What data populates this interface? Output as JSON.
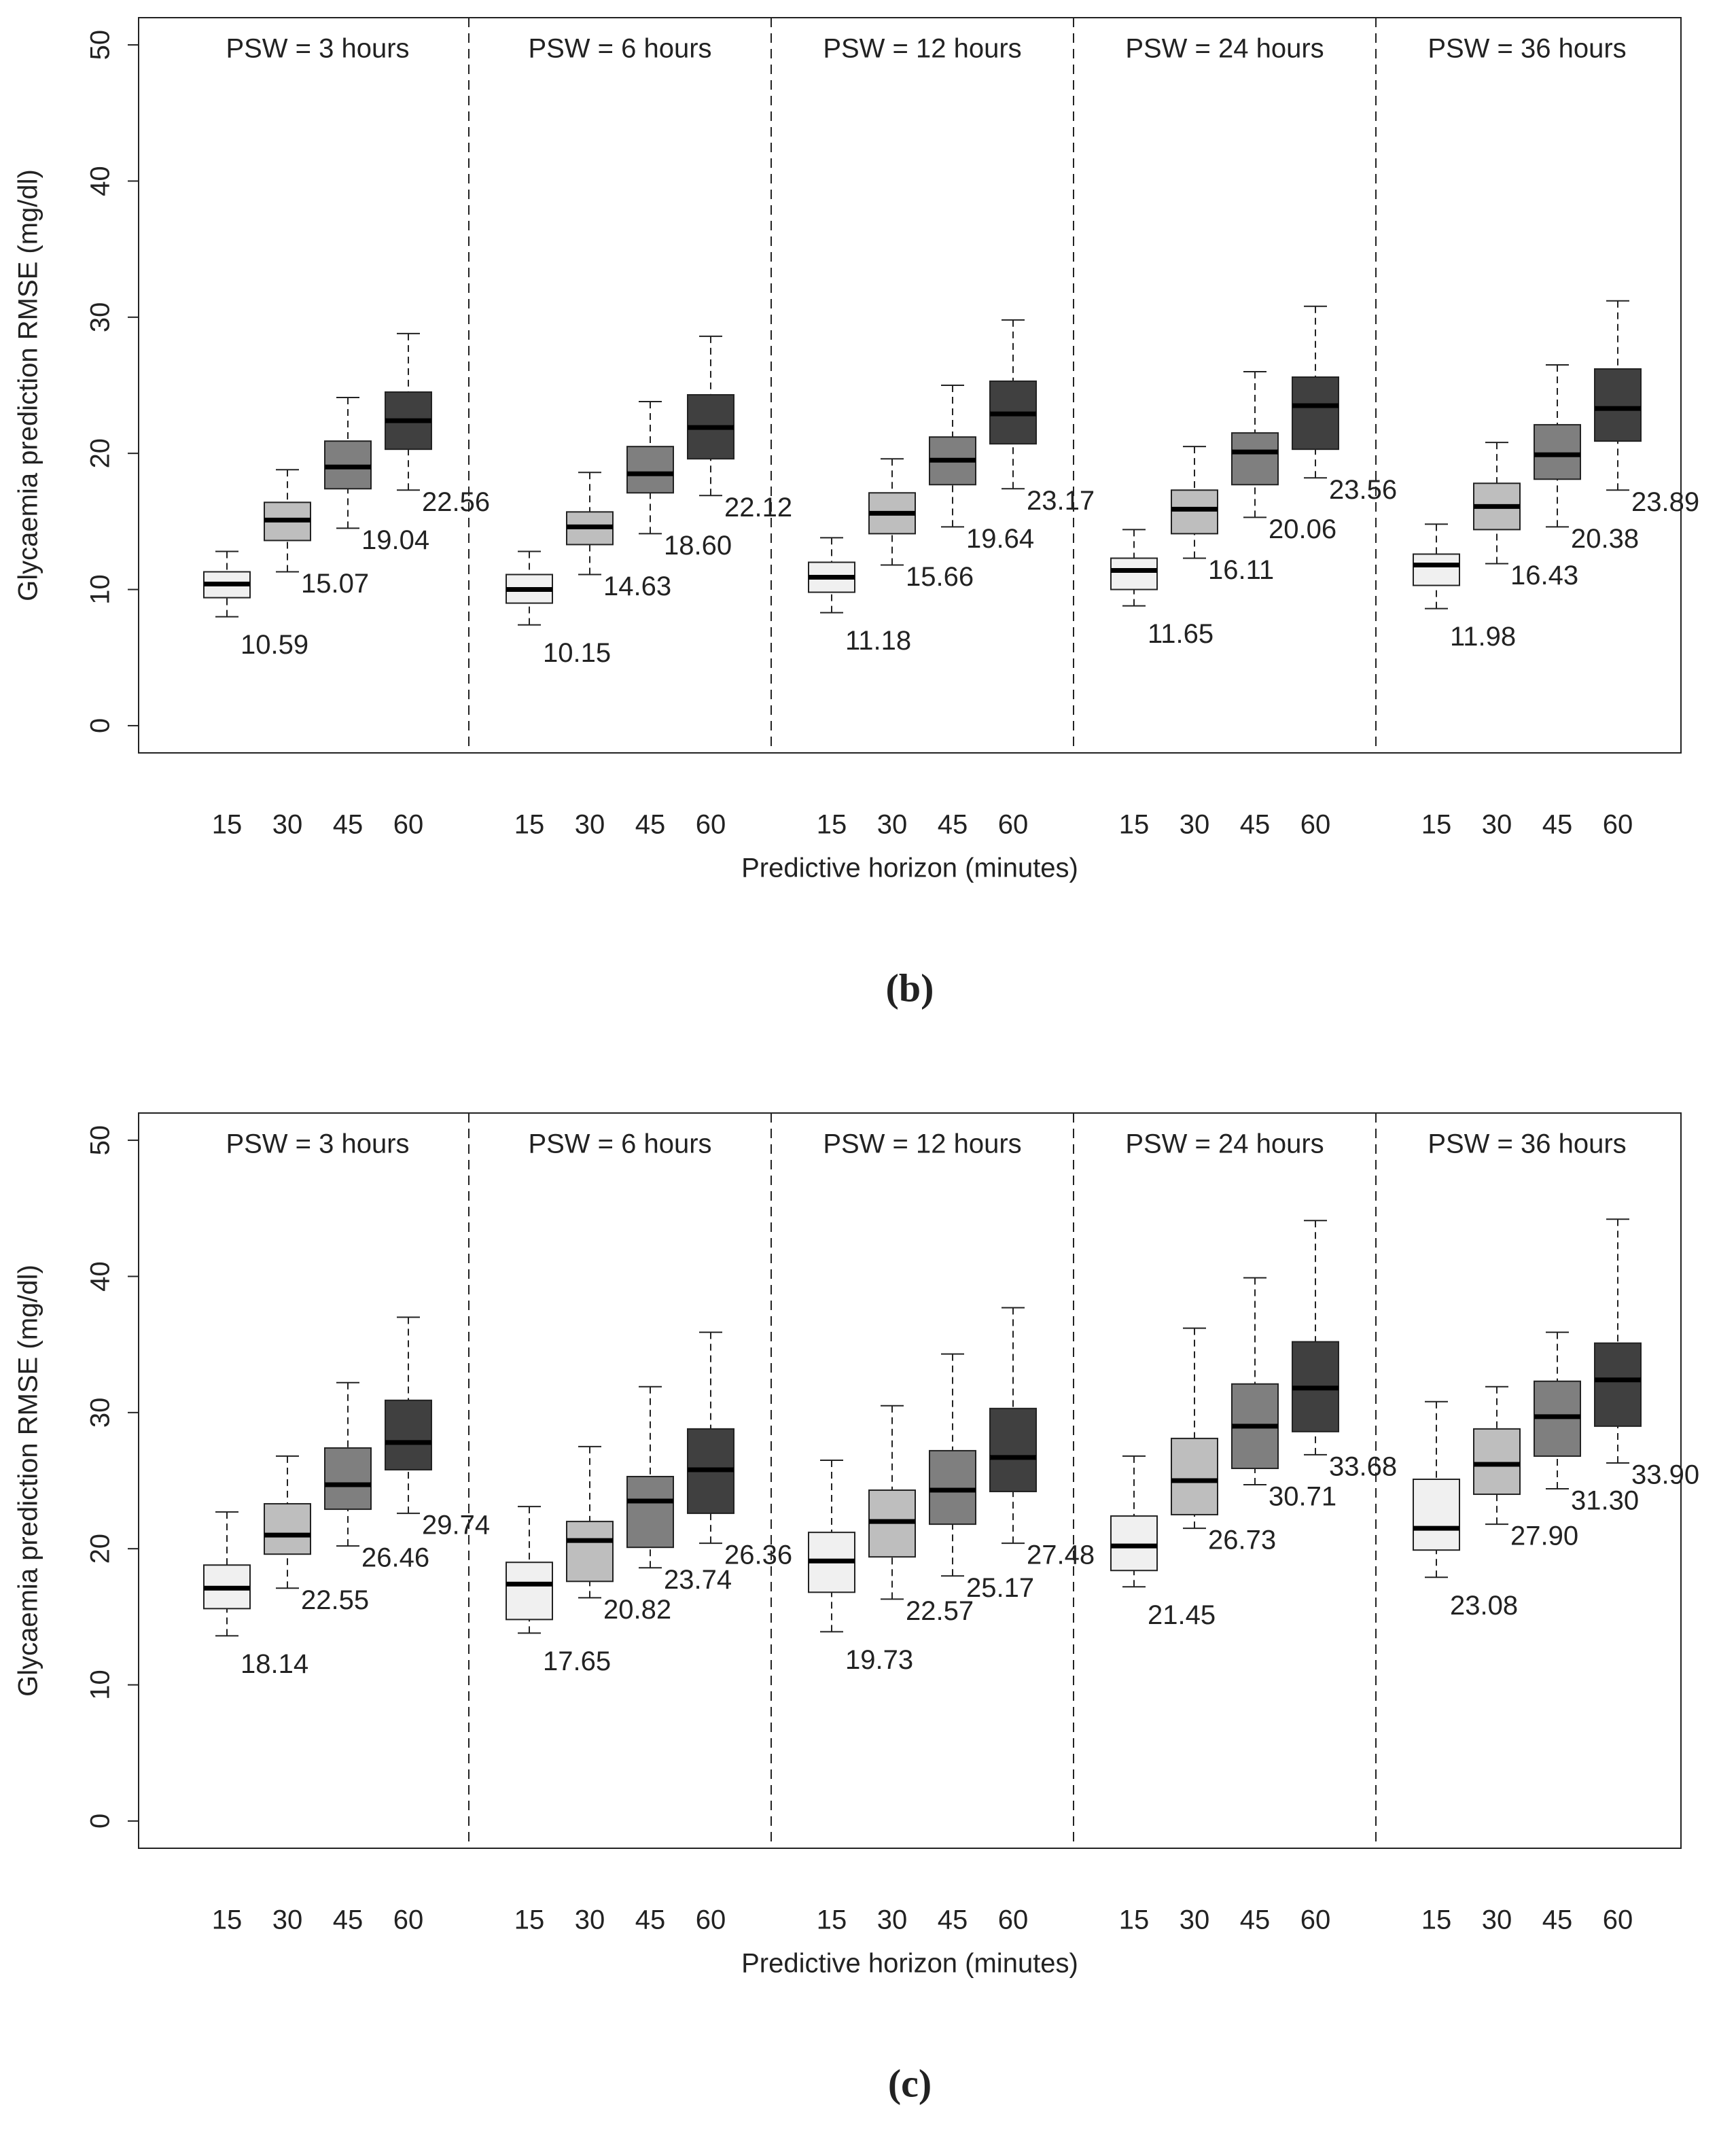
{
  "chart_data": [
    {
      "type": "box",
      "caption": "(b)",
      "y_label": "Glycaemia prediction RMSE (mg/dl)",
      "x_label": "Predictive horizon (minutes)",
      "categories": [
        "15",
        "30",
        "45",
        "60"
      ],
      "colors": [
        "#f0f0f0",
        "#bebebe",
        "#7f7f7f",
        "#404040"
      ],
      "ylim": [
        -2,
        52
      ],
      "yticks": [
        0,
        10,
        20,
        30,
        40,
        50
      ],
      "groups": [
        {
          "name": "PSW = 3 hours",
          "boxes": [
            {
              "whislo": 8.0,
              "q1": 9.4,
              "med": 10.4,
              "q3": 11.3,
              "whishi": 12.8
            },
            {
              "whislo": 11.3,
              "q1": 13.6,
              "med": 15.1,
              "q3": 16.4,
              "whishi": 18.8
            },
            {
              "whislo": 14.5,
              "q1": 17.4,
              "med": 19.0,
              "q3": 20.9,
              "whishi": 24.1
            },
            {
              "whislo": 17.3,
              "q1": 20.3,
              "med": 22.4,
              "q3": 24.5,
              "whishi": 28.8
            }
          ],
          "values": [
            10.59,
            15.07,
            19.04,
            22.56
          ],
          "value_labels": [
            "10.59",
            "15.07",
            "19.04",
            "22.56"
          ]
        },
        {
          "name": "PSW = 6 hours",
          "boxes": [
            {
              "whislo": 7.4,
              "q1": 9.0,
              "med": 10.0,
              "q3": 11.1,
              "whishi": 12.8
            },
            {
              "whislo": 11.1,
              "q1": 13.3,
              "med": 14.6,
              "q3": 15.7,
              "whishi": 18.6
            },
            {
              "whislo": 14.1,
              "q1": 17.1,
              "med": 18.5,
              "q3": 20.5,
              "whishi": 23.8
            },
            {
              "whislo": 16.9,
              "q1": 19.6,
              "med": 21.9,
              "q3": 24.3,
              "whishi": 28.6
            }
          ],
          "values": [
            10.15,
            14.63,
            18.6,
            22.12
          ],
          "value_labels": [
            "10.15",
            "14.63",
            "18.60",
            "22.12"
          ]
        },
        {
          "name": "PSW = 12 hours",
          "boxes": [
            {
              "whislo": 8.3,
              "q1": 9.8,
              "med": 10.9,
              "q3": 12.0,
              "whishi": 13.8
            },
            {
              "whislo": 11.8,
              "q1": 14.1,
              "med": 15.6,
              "q3": 17.1,
              "whishi": 19.6
            },
            {
              "whislo": 14.6,
              "q1": 17.7,
              "med": 19.5,
              "q3": 21.2,
              "whishi": 25.0
            },
            {
              "whislo": 17.4,
              "q1": 20.7,
              "med": 22.9,
              "q3": 25.3,
              "whishi": 29.8
            }
          ],
          "values": [
            11.18,
            15.66,
            19.64,
            23.17
          ],
          "value_labels": [
            "11.18",
            "15.66",
            "19.64",
            "23.17"
          ]
        },
        {
          "name": "PSW = 24 hours",
          "boxes": [
            {
              "whislo": 8.8,
              "q1": 10.0,
              "med": 11.4,
              "q3": 12.3,
              "whishi": 14.4
            },
            {
              "whislo": 12.3,
              "q1": 14.1,
              "med": 15.9,
              "q3": 17.3,
              "whishi": 20.5
            },
            {
              "whislo": 15.3,
              "q1": 17.7,
              "med": 20.1,
              "q3": 21.5,
              "whishi": 26.0
            },
            {
              "whislo": 18.2,
              "q1": 20.3,
              "med": 23.5,
              "q3": 25.6,
              "whishi": 30.8
            }
          ],
          "values": [
            11.65,
            16.11,
            20.06,
            23.56
          ],
          "value_labels": [
            "11.65",
            "16.11",
            "20.06",
            "23.56"
          ]
        },
        {
          "name": "PSW = 36 hours",
          "boxes": [
            {
              "whislo": 8.6,
              "q1": 10.3,
              "med": 11.8,
              "q3": 12.6,
              "whishi": 14.8
            },
            {
              "whislo": 11.9,
              "q1": 14.4,
              "med": 16.1,
              "q3": 17.8,
              "whishi": 20.8
            },
            {
              "whislo": 14.6,
              "q1": 18.1,
              "med": 19.9,
              "q3": 22.1,
              "whishi": 26.5
            },
            {
              "whislo": 17.3,
              "q1": 20.9,
              "med": 23.3,
              "q3": 26.2,
              "whishi": 31.2
            }
          ],
          "values": [
            11.98,
            16.43,
            20.38,
            23.89
          ],
          "value_labels": [
            "11.98",
            "16.43",
            "20.38",
            "23.89"
          ]
        }
      ]
    },
    {
      "type": "box",
      "caption": "(c)",
      "y_label": "Glycaemia prediction RMSE (mg/dl)",
      "x_label": "Predictive horizon (minutes)",
      "categories": [
        "15",
        "30",
        "45",
        "60"
      ],
      "colors": [
        "#f0f0f0",
        "#bebebe",
        "#7f7f7f",
        "#404040"
      ],
      "ylim": [
        -2,
        52
      ],
      "yticks": [
        0,
        10,
        20,
        30,
        40,
        50
      ],
      "groups": [
        {
          "name": "PSW = 3 hours",
          "boxes": [
            {
              "whislo": 13.6,
              "q1": 15.6,
              "med": 17.1,
              "q3": 18.8,
              "whishi": 22.7
            },
            {
              "whislo": 17.1,
              "q1": 19.6,
              "med": 21.0,
              "q3": 23.3,
              "whishi": 26.8
            },
            {
              "whislo": 20.2,
              "q1": 22.9,
              "med": 24.7,
              "q3": 27.4,
              "whishi": 32.2
            },
            {
              "whislo": 22.6,
              "q1": 25.8,
              "med": 27.8,
              "q3": 30.9,
              "whishi": 37.0
            }
          ],
          "values": [
            18.14,
            22.55,
            26.46,
            29.74
          ],
          "value_labels": [
            "18.14",
            "22.55",
            "26.46",
            "29.74"
          ]
        },
        {
          "name": "PSW = 6 hours",
          "boxes": [
            {
              "whislo": 13.8,
              "q1": 14.8,
              "med": 17.4,
              "q3": 19.0,
              "whishi": 23.1
            },
            {
              "whislo": 16.4,
              "q1": 17.6,
              "med": 20.6,
              "q3": 22.0,
              "whishi": 27.5
            },
            {
              "whislo": 18.6,
              "q1": 20.1,
              "med": 23.5,
              "q3": 25.3,
              "whishi": 31.9
            },
            {
              "whislo": 20.4,
              "q1": 22.6,
              "med": 25.8,
              "q3": 28.8,
              "whishi": 35.9
            }
          ],
          "values": [
            17.65,
            20.82,
            23.74,
            26.36
          ],
          "value_labels": [
            "17.65",
            "20.82",
            "23.74",
            "26.36"
          ]
        },
        {
          "name": "PSW = 12 hours",
          "boxes": [
            {
              "whislo": 13.9,
              "q1": 16.8,
              "med": 19.1,
              "q3": 21.2,
              "whishi": 26.5
            },
            {
              "whislo": 16.3,
              "q1": 19.4,
              "med": 22.0,
              "q3": 24.3,
              "whishi": 30.5
            },
            {
              "whislo": 18.0,
              "q1": 21.8,
              "med": 24.3,
              "q3": 27.2,
              "whishi": 34.3
            },
            {
              "whislo": 20.4,
              "q1": 24.2,
              "med": 26.7,
              "q3": 30.3,
              "whishi": 37.7
            }
          ],
          "values": [
            19.73,
            22.57,
            25.17,
            27.48
          ],
          "value_labels": [
            "19.73",
            "22.57",
            "25.17",
            "27.48"
          ]
        },
        {
          "name": "PSW = 24 hours",
          "boxes": [
            {
              "whislo": 17.2,
              "q1": 18.4,
              "med": 20.2,
              "q3": 22.4,
              "whishi": 26.8
            },
            {
              "whislo": 21.5,
              "q1": 22.5,
              "med": 25.0,
              "q3": 28.1,
              "whishi": 36.2
            },
            {
              "whislo": 24.7,
              "q1": 25.9,
              "med": 29.0,
              "q3": 32.1,
              "whishi": 39.9
            },
            {
              "whislo": 26.9,
              "q1": 28.6,
              "med": 31.8,
              "q3": 35.2,
              "whishi": 44.1
            }
          ],
          "values": [
            21.45,
            26.73,
            30.71,
            33.68
          ],
          "value_labels": [
            "21.45",
            "26.73",
            "30.71",
            "33.68"
          ]
        },
        {
          "name": "PSW = 36 hours",
          "boxes": [
            {
              "whislo": 17.9,
              "q1": 19.9,
              "med": 21.5,
              "q3": 25.1,
              "whishi": 30.8
            },
            {
              "whislo": 21.8,
              "q1": 24.0,
              "med": 26.2,
              "q3": 28.8,
              "whishi": 31.9
            },
            {
              "whislo": 24.4,
              "q1": 26.8,
              "med": 29.7,
              "q3": 32.3,
              "whishi": 35.9
            },
            {
              "whislo": 26.3,
              "q1": 29.0,
              "med": 32.4,
              "q3": 35.1,
              "whishi": 44.2
            }
          ],
          "values": [
            23.08,
            27.9,
            31.3,
            33.9
          ],
          "value_labels": [
            "23.08",
            "27.90",
            "31.30",
            "33.90"
          ]
        }
      ]
    }
  ]
}
